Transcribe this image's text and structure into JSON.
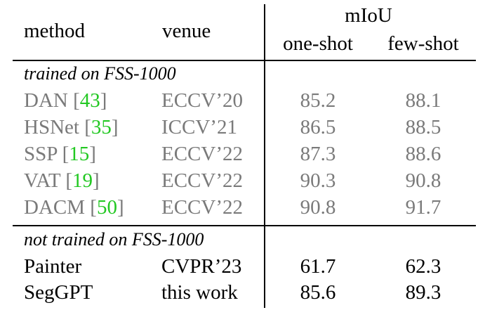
{
  "header": {
    "method": "method",
    "venue": "venue",
    "metric": "mIoU",
    "one_shot": "one-shot",
    "few_shot": "few-shot"
  },
  "groups": [
    {
      "label": "trained on FSS-1000",
      "rows": [
        {
          "name": "DAN",
          "cite": "43",
          "venue": "ECCV’20",
          "one_shot": "85.2",
          "few_shot": "88.1"
        },
        {
          "name": "HSNet",
          "cite": "35",
          "venue": "ICCV’21",
          "one_shot": "86.5",
          "few_shot": "88.5"
        },
        {
          "name": "SSP",
          "cite": "15",
          "venue": "ECCV’22",
          "one_shot": "87.3",
          "few_shot": "88.6"
        },
        {
          "name": "VAT",
          "cite": "19",
          "venue": "ECCV’22",
          "one_shot": "90.3",
          "few_shot": "90.8"
        },
        {
          "name": "DACM",
          "cite": "50",
          "venue": "ECCV’22",
          "one_shot": "90.8",
          "few_shot": "91.7"
        }
      ]
    },
    {
      "label": "not trained on FSS-1000",
      "rows": [
        {
          "name": "Painter",
          "venue": "CVPR’23",
          "one_shot": "61.7",
          "few_shot": "62.3"
        },
        {
          "name": "SegGPT",
          "venue": "this work",
          "one_shot": "85.6",
          "few_shot": "89.3"
        }
      ]
    }
  ],
  "colors": {
    "baseline_text": "#7a7a7a",
    "citation": "#22c822",
    "ours_text": "#000000"
  }
}
